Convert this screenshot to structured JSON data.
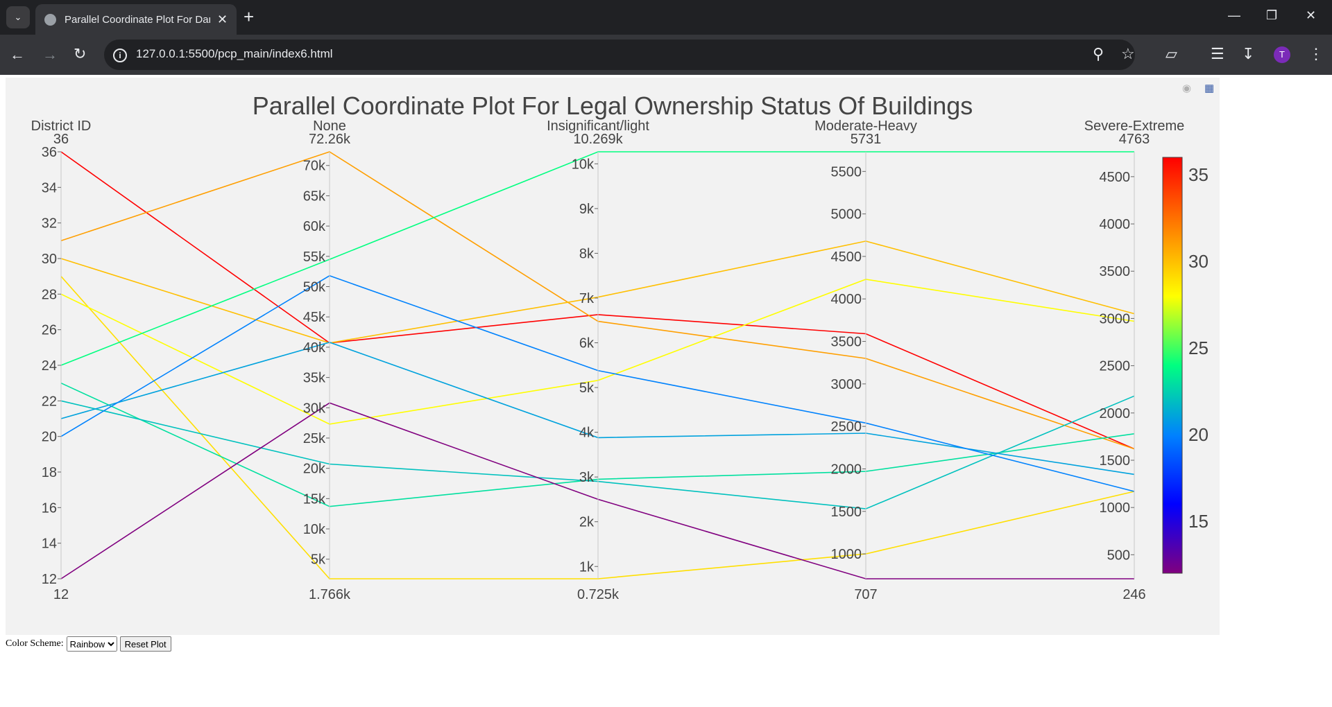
{
  "browser": {
    "tab_title": "Parallel Coordinate Plot For Dan",
    "url": "127.0.0.1:5500/pcp_main/index6.html",
    "profile_initial": "T"
  },
  "controls": {
    "color_scheme_label": "Color Scheme:",
    "color_scheme_value": "Rainbow",
    "reset_label": "Reset Plot"
  },
  "chart_data": {
    "type": "parallel_coordinates",
    "title": "Parallel Coordinate Plot For Legal Ownership Status Of Buildings",
    "colorscale": "Rainbow",
    "color_by": "District ID",
    "colorbar": {
      "range": [
        12,
        36
      ],
      "ticks": [
        "35",
        "30",
        "25",
        "20",
        "15"
      ]
    },
    "dimensions": [
      {
        "label": "District ID",
        "range": [
          12,
          36
        ],
        "max_label": "36",
        "min_label": "12",
        "ticks": [
          "36",
          "34",
          "32",
          "30",
          "28",
          "26",
          "24",
          "22",
          "20",
          "18",
          "16",
          "14",
          "12"
        ]
      },
      {
        "label": "None",
        "range": [
          1766,
          72260
        ],
        "max_label": "72.26k",
        "min_label": "1.766k",
        "ticks": [
          "70k",
          "65k",
          "60k",
          "55k",
          "50k",
          "45k",
          "40k",
          "35k",
          "30k",
          "25k",
          "20k",
          "15k",
          "10k",
          "5k"
        ]
      },
      {
        "label": "Insignificant/light",
        "range": [
          725,
          10269
        ],
        "max_label": "10.269k",
        "min_label": "0.725k",
        "ticks": [
          "10k",
          "9k",
          "8k",
          "7k",
          "6k",
          "5k",
          "4k",
          "3k",
          "2k",
          "1k"
        ]
      },
      {
        "label": "Moderate-Heavy",
        "range": [
          707,
          5731
        ],
        "max_label": "5731",
        "min_label": "707",
        "ticks": [
          "5500",
          "5000",
          "4500",
          "4000",
          "3500",
          "3000",
          "2500",
          "2000",
          "1500",
          "1000"
        ]
      },
      {
        "label": "Severe-Extreme",
        "range": [
          246,
          4763
        ],
        "max_label": "4763",
        "min_label": "246",
        "ticks": [
          "4500",
          "4000",
          "3500",
          "3000",
          "2500",
          "2000",
          "1500",
          "1000",
          "500"
        ]
      }
    ],
    "records": [
      [
        36,
        40700,
        6630,
        3590,
        1620
      ],
      [
        31,
        72260,
        6480,
        3300,
        1620
      ],
      [
        30,
        40700,
        7020,
        4680,
        3050
      ],
      [
        29,
        1766,
        725,
        1000,
        1170
      ],
      [
        28,
        27300,
        5160,
        4230,
        2970
      ],
      [
        24,
        54500,
        10269,
        5731,
        4763
      ],
      [
        23,
        13700,
        2950,
        1970,
        1780
      ],
      [
        22,
        20700,
        2900,
        1530,
        2180
      ],
      [
        21,
        40800,
        3880,
        2420,
        1350
      ],
      [
        20,
        51800,
        5380,
        2540,
        1170
      ],
      [
        12,
        30800,
        2500,
        707,
        246
      ]
    ]
  }
}
